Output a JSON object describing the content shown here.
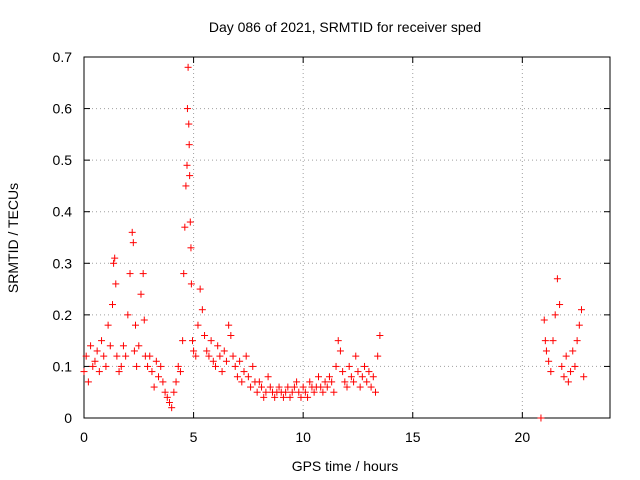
{
  "chart_data": {
    "type": "scatter",
    "title": "Day 086 of 2021, SRMTID for receiver sped",
    "xlabel": "GPS time / hours",
    "ylabel": "SRMTID / TECUs",
    "xlim": [
      0,
      24
    ],
    "ylim": [
      0,
      0.7
    ],
    "xticks": [
      0,
      5,
      10,
      15,
      20
    ],
    "xtick_labels": [
      "0",
      "5",
      "10",
      "15",
      "20"
    ],
    "yticks": [
      0,
      0.1,
      0.2,
      0.3,
      0.4,
      0.5,
      0.6,
      0.7
    ],
    "ytick_labels": [
      "0",
      "0.1",
      "0.2",
      "0.3",
      "0.4",
      "0.5",
      "0.6",
      "0.7"
    ],
    "grid": true,
    "marker": "plus",
    "color": "#ff0000",
    "series": [
      {
        "name": "SRMTID",
        "x": [
          0.0,
          0.1,
          0.2,
          0.3,
          0.4,
          0.5,
          0.6,
          0.7,
          0.8,
          0.9,
          1.0,
          1.1,
          1.2,
          1.3,
          1.35,
          1.4,
          1.45,
          1.5,
          1.6,
          1.7,
          1.8,
          1.9,
          2.0,
          2.1,
          2.2,
          2.25,
          2.3,
          2.35,
          2.4,
          2.5,
          2.6,
          2.7,
          2.75,
          2.8,
          2.9,
          3.0,
          3.1,
          3.2,
          3.3,
          3.4,
          3.5,
          3.6,
          3.7,
          3.8,
          3.9,
          4.0,
          4.1,
          4.2,
          4.3,
          4.4,
          4.5,
          4.55,
          4.6,
          4.65,
          4.7,
          4.72,
          4.75,
          4.78,
          4.8,
          4.82,
          4.85,
          4.88,
          4.9,
          4.95,
          5.0,
          5.1,
          5.2,
          5.3,
          5.4,
          5.5,
          5.6,
          5.7,
          5.8,
          5.9,
          6.0,
          6.1,
          6.2,
          6.3,
          6.4,
          6.5,
          6.6,
          6.7,
          6.8,
          6.9,
          7.0,
          7.1,
          7.2,
          7.3,
          7.4,
          7.5,
          7.6,
          7.7,
          7.8,
          7.9,
          8.0,
          8.1,
          8.2,
          8.3,
          8.4,
          8.5,
          8.6,
          8.7,
          8.8,
          8.9,
          9.0,
          9.1,
          9.2,
          9.3,
          9.4,
          9.5,
          9.6,
          9.7,
          9.8,
          9.9,
          10.0,
          10.1,
          10.2,
          10.3,
          10.4,
          10.5,
          10.6,
          10.7,
          10.8,
          10.9,
          11.0,
          11.1,
          11.2,
          11.3,
          11.4,
          11.5,
          11.6,
          11.7,
          11.8,
          11.9,
          12.0,
          12.1,
          12.2,
          12.3,
          12.4,
          12.5,
          12.6,
          12.7,
          12.8,
          12.9,
          13.0,
          13.1,
          13.2,
          13.3,
          13.4,
          13.5,
          20.85,
          21.0,
          21.05,
          21.1,
          21.2,
          21.3,
          21.4,
          21.5,
          21.6,
          21.7,
          21.8,
          21.9,
          22.0,
          22.1,
          22.2,
          22.3,
          22.4,
          22.5,
          22.6,
          22.7,
          22.8
        ],
        "y": [
          0.09,
          0.12,
          0.07,
          0.14,
          0.1,
          0.11,
          0.13,
          0.09,
          0.15,
          0.12,
          0.1,
          0.18,
          0.14,
          0.22,
          0.3,
          0.31,
          0.26,
          0.12,
          0.09,
          0.1,
          0.14,
          0.12,
          0.2,
          0.28,
          0.36,
          0.34,
          0.13,
          0.18,
          0.1,
          0.14,
          0.24,
          0.28,
          0.19,
          0.12,
          0.1,
          0.12,
          0.09,
          0.06,
          0.11,
          0.08,
          0.1,
          0.07,
          0.05,
          0.04,
          0.03,
          0.02,
          0.05,
          0.07,
          0.1,
          0.09,
          0.15,
          0.28,
          0.37,
          0.45,
          0.49,
          0.6,
          0.68,
          0.57,
          0.53,
          0.47,
          0.38,
          0.33,
          0.26,
          0.15,
          0.13,
          0.12,
          0.18,
          0.25,
          0.21,
          0.16,
          0.13,
          0.12,
          0.15,
          0.11,
          0.1,
          0.14,
          0.12,
          0.09,
          0.13,
          0.11,
          0.18,
          0.16,
          0.12,
          0.1,
          0.08,
          0.11,
          0.07,
          0.09,
          0.12,
          0.08,
          0.06,
          0.1,
          0.07,
          0.05,
          0.07,
          0.06,
          0.04,
          0.05,
          0.08,
          0.06,
          0.05,
          0.04,
          0.05,
          0.06,
          0.05,
          0.04,
          0.05,
          0.06,
          0.04,
          0.05,
          0.06,
          0.07,
          0.05,
          0.04,
          0.06,
          0.05,
          0.04,
          0.07,
          0.06,
          0.05,
          0.06,
          0.08,
          0.06,
          0.05,
          0.07,
          0.06,
          0.08,
          0.07,
          0.05,
          0.1,
          0.15,
          0.13,
          0.09,
          0.07,
          0.06,
          0.1,
          0.08,
          0.07,
          0.12,
          0.09,
          0.06,
          0.08,
          0.1,
          0.07,
          0.09,
          0.06,
          0.08,
          0.05,
          0.12,
          0.16,
          0.0,
          0.19,
          0.15,
          0.13,
          0.11,
          0.09,
          0.15,
          0.2,
          0.27,
          0.22,
          0.1,
          0.08,
          0.12,
          0.07,
          0.09,
          0.13,
          0.1,
          0.15,
          0.18,
          0.21,
          0.08
        ]
      }
    ]
  }
}
